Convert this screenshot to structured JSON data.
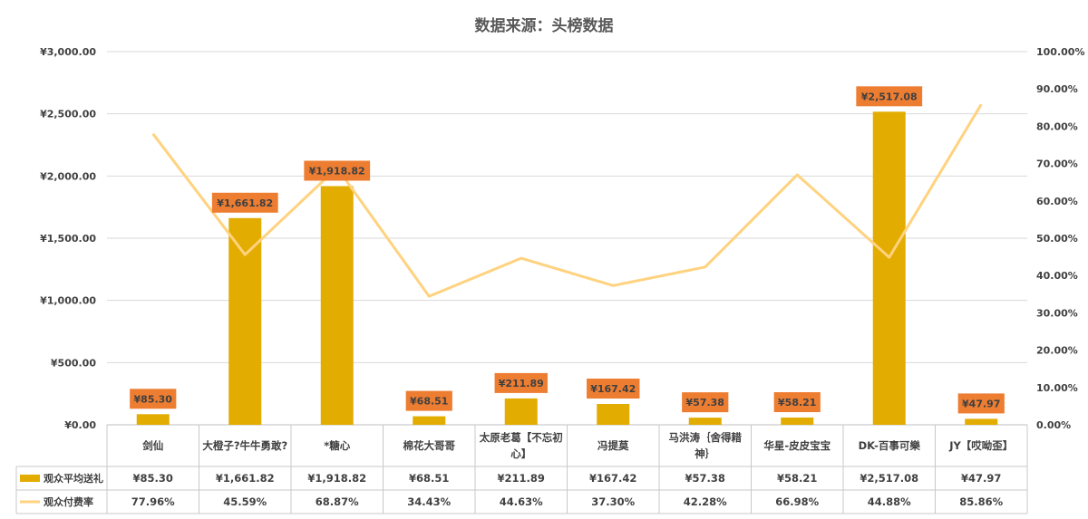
{
  "chart_data": {
    "type": "bar",
    "title": "数据来源：头榜数据",
    "categories": [
      "剑仙",
      "大橙子?牛牛勇敢?",
      "*糖心",
      "棉花大哥哥",
      "太原老葛【不忘初心】",
      "冯提莫",
      "马洪涛｛舍得耤神｝",
      "华星-皮皮宝宝",
      "DK-百事可樂",
      "JY【哎呦歪】"
    ],
    "category_lines": [
      [
        "剑仙"
      ],
      [
        "大橙子?牛牛勇敢?"
      ],
      [
        "*糖心"
      ],
      [
        "棉花大哥哥"
      ],
      [
        "太原老葛【不忘初",
        "心】"
      ],
      [
        "冯提莫"
      ],
      [
        "马洪涛｛舍得耤",
        "神｝"
      ],
      [
        "华星-皮皮宝宝"
      ],
      [
        "DK-百事可樂"
      ],
      [
        "JY【哎呦歪】"
      ]
    ],
    "series": [
      {
        "name": "观众平均送礼",
        "type": "bar",
        "axis": "left",
        "values": [
          85.3,
          1661.82,
          1918.82,
          68.51,
          211.89,
          167.42,
          57.38,
          58.21,
          2517.08,
          47.97
        ],
        "labels": [
          "¥85.30",
          "¥1,661.82",
          "¥1,918.82",
          "¥68.51",
          "¥211.89",
          "¥167.42",
          "¥57.38",
          "¥58.21",
          "¥2,517.08",
          "¥47.97"
        ],
        "color": "#E2AC00"
      },
      {
        "name": "观众付费率",
        "type": "line",
        "axis": "right",
        "values": [
          77.96,
          45.59,
          68.87,
          34.43,
          44.63,
          37.3,
          42.28,
          66.98,
          44.88,
          85.86
        ],
        "labels": [
          "77.96%",
          "45.59%",
          "68.87%",
          "34.43%",
          "44.63%",
          "37.30%",
          "42.28%",
          "66.98%",
          "44.88%",
          "85.86%"
        ],
        "color": "#FFD27F"
      }
    ],
    "ylim": [
      0,
      3000
    ],
    "y_ticks": [
      "¥0.00",
      "¥500.00",
      "¥1,000.00",
      "¥1,500.00",
      "¥2,000.00",
      "¥2,500.00",
      "¥3,000.00"
    ],
    "y2lim": [
      0,
      100
    ],
    "y2_ticks": [
      "0.00%",
      "10.00%",
      "20.00%",
      "30.00%",
      "40.00%",
      "50.00%",
      "60.00%",
      "70.00%",
      "80.00%",
      "90.00%",
      "100.00%"
    ],
    "grid": true,
    "legend": "data-table",
    "data_label_color": "#ED7D31"
  }
}
